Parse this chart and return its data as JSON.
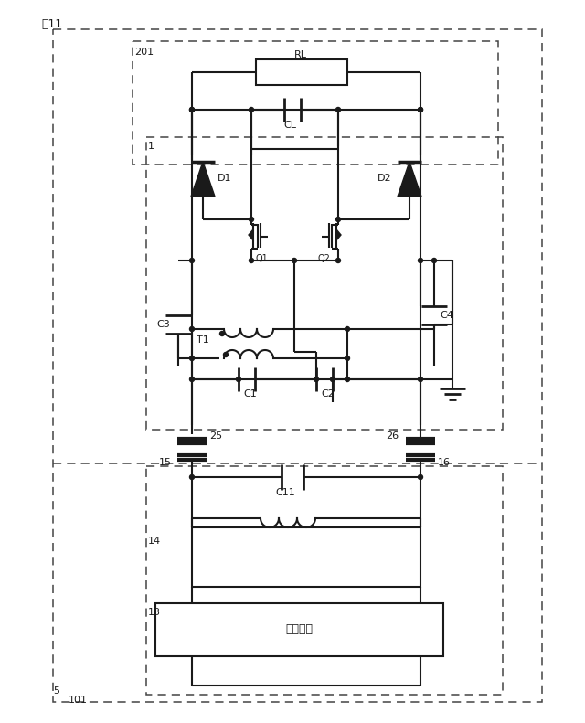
{
  "bg_color": "#ffffff",
  "line_color": "#1a1a1a",
  "dashed_color": "#444444",
  "labels": {
    "fig11": "図11",
    "201": "201",
    "1": "1",
    "RL": "RL",
    "CL": "CL",
    "D1": "D1",
    "D2": "D2",
    "Q1": "Q1",
    "Q2": "Q2",
    "C3": "C3",
    "C4": "C4",
    "T1": "T1",
    "C1": "C1",
    "C2": "C2",
    "25": "25",
    "26": "26",
    "15": "15",
    "16": "16",
    "C11": "C11",
    "14": "14",
    "13": "13",
    "101": "101",
    "5": "5",
    "dengen_kairo": "電源回路"
  }
}
